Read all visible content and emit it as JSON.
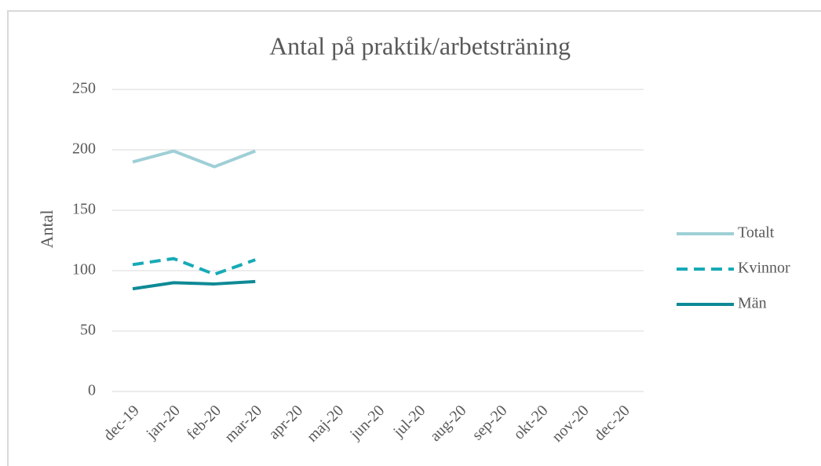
{
  "chart_data": {
    "type": "line",
    "title": "Antal på praktik/arbetsträning",
    "y_label": "Antal",
    "categories": [
      "dec-19",
      "jan-20",
      "feb-20",
      "mar-20",
      "apr-20",
      "maj-20",
      "jun-20",
      "jul-20",
      "aug-20",
      "sep-20",
      "okt-20",
      "nov-20",
      "dec-20"
    ],
    "series": [
      {
        "name": "Totalt",
        "color": "#9fcfd6",
        "dash": false,
        "values": [
          190,
          199,
          186,
          199,
          null,
          null,
          null,
          null,
          null,
          null,
          null,
          null,
          null
        ]
      },
      {
        "name": "Kvinnor",
        "color": "#17aab7",
        "dash": true,
        "values": [
          105,
          110,
          97,
          109,
          null,
          null,
          null,
          null,
          null,
          null,
          null,
          null,
          null
        ]
      },
      {
        "name": "Män",
        "color": "#0e8a96",
        "dash": false,
        "values": [
          85,
          90,
          89,
          91,
          null,
          null,
          null,
          null,
          null,
          null,
          null,
          null,
          null
        ]
      }
    ],
    "ylim": [
      0,
      250
    ],
    "yticks": [
      0,
      50,
      100,
      150,
      200,
      250
    ],
    "grid": true,
    "legend": "right"
  }
}
